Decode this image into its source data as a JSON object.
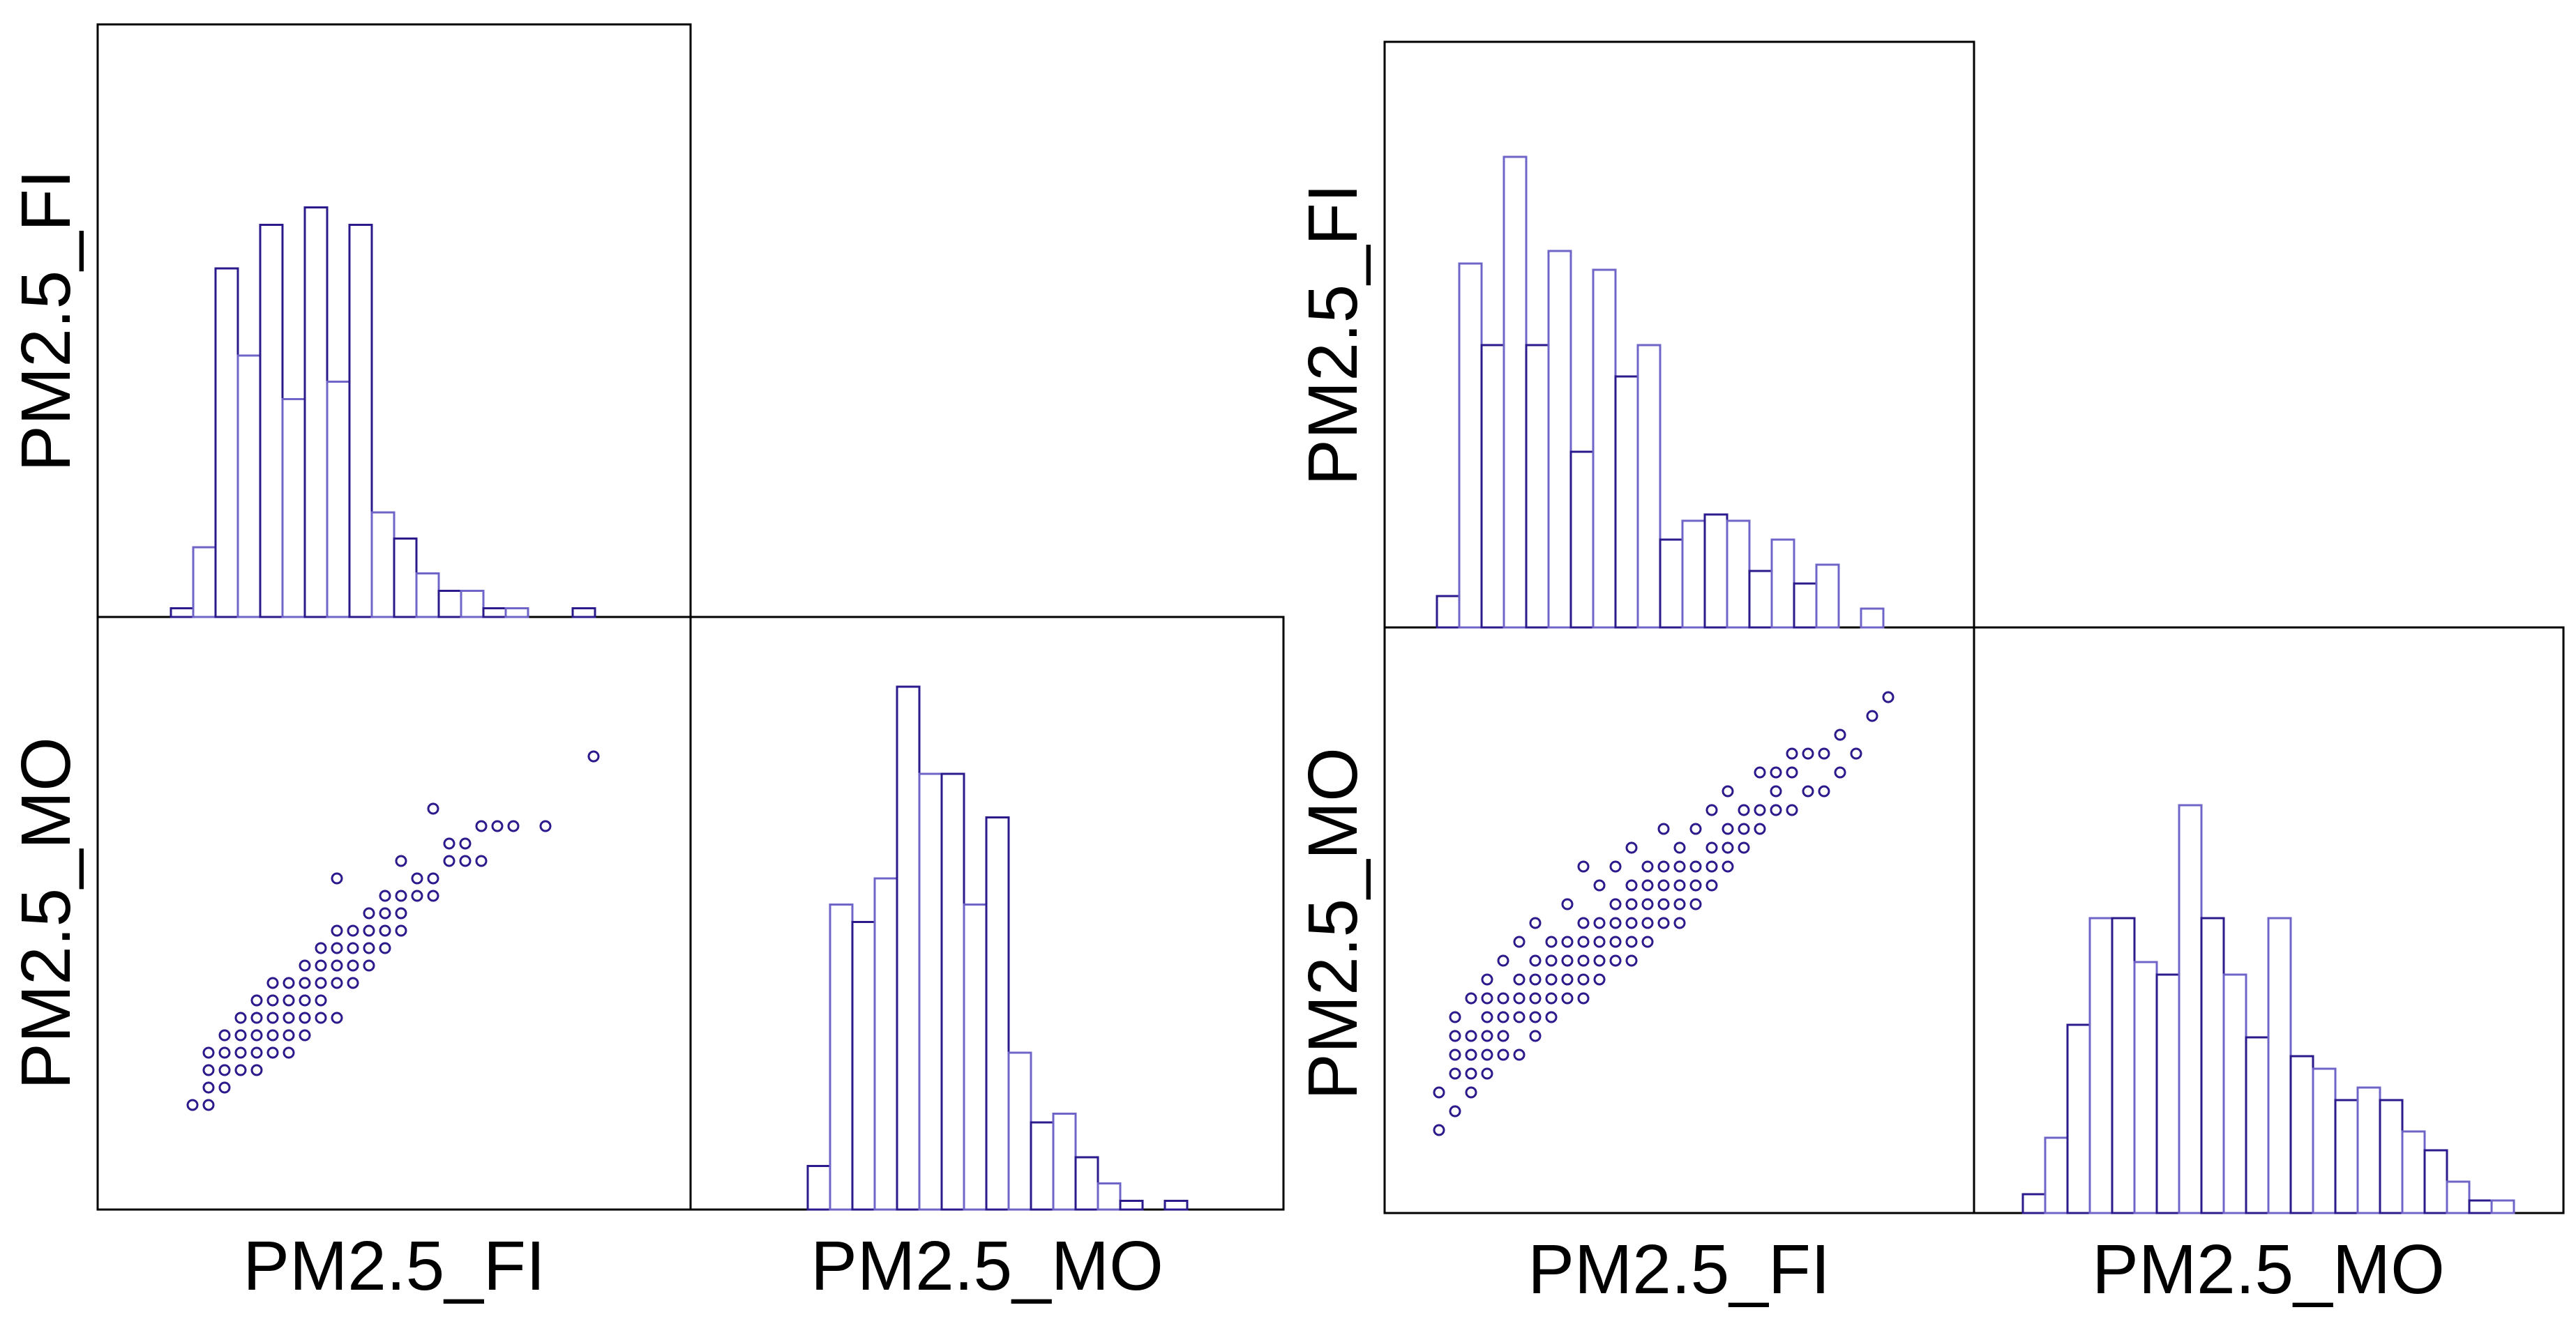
{
  "colors": {
    "primary": "#2a1a8c",
    "secondary": "#6f64c8",
    "frame": "#000000"
  },
  "chart_data": [
    {
      "type": "scatter-matrix",
      "variables": [
        "PM2.5_FI",
        "PM2.5_MO"
      ],
      "diagonal_histograms": {
        "PM2.5_FI": {
          "bin_counts": [
            1,
            8,
            40,
            30,
            45,
            25,
            47,
            27,
            45,
            12,
            9,
            5,
            3,
            3,
            1,
            1,
            0,
            0,
            1
          ]
        },
        "PM2.5_MO": {
          "bin_counts": [
            0,
            0,
            0,
            0,
            5,
            35,
            33,
            38,
            60,
            50,
            50,
            35,
            45,
            18,
            10,
            11,
            6,
            3,
            1,
            0,
            1,
            0
          ]
        }
      },
      "scatter": {
        "x_variable": "PM2.5_FI",
        "y_variable": "PM2.5_MO",
        "points": [
          [
            2,
            2
          ],
          [
            3,
            2
          ],
          [
            3,
            3
          ],
          [
            3,
            4
          ],
          [
            3,
            5
          ],
          [
            4,
            3
          ],
          [
            4,
            4
          ],
          [
            4,
            5
          ],
          [
            4,
            6
          ],
          [
            5,
            4
          ],
          [
            5,
            5
          ],
          [
            5,
            6
          ],
          [
            5,
            7
          ],
          [
            6,
            4
          ],
          [
            6,
            5
          ],
          [
            6,
            6
          ],
          [
            6,
            7
          ],
          [
            6,
            8
          ],
          [
            7,
            5
          ],
          [
            7,
            6
          ],
          [
            7,
            7
          ],
          [
            7,
            8
          ],
          [
            7,
            9
          ],
          [
            8,
            5
          ],
          [
            8,
            6
          ],
          [
            8,
            7
          ],
          [
            8,
            8
          ],
          [
            8,
            9
          ],
          [
            9,
            6
          ],
          [
            9,
            7
          ],
          [
            9,
            8
          ],
          [
            9,
            9
          ],
          [
            9,
            10
          ],
          [
            10,
            7
          ],
          [
            10,
            8
          ],
          [
            10,
            9
          ],
          [
            10,
            10
          ],
          [
            10,
            11
          ],
          [
            11,
            7
          ],
          [
            11,
            9
          ],
          [
            11,
            10
          ],
          [
            11,
            11
          ],
          [
            11,
            12
          ],
          [
            11,
            15
          ],
          [
            12,
            9
          ],
          [
            12,
            10
          ],
          [
            12,
            11
          ],
          [
            12,
            12
          ],
          [
            13,
            10
          ],
          [
            13,
            11
          ],
          [
            13,
            12
          ],
          [
            13,
            13
          ],
          [
            14,
            11
          ],
          [
            14,
            12
          ],
          [
            14,
            13
          ],
          [
            14,
            14
          ],
          [
            15,
            12
          ],
          [
            15,
            13
          ],
          [
            15,
            14
          ],
          [
            15,
            16
          ],
          [
            16,
            14
          ],
          [
            16,
            15
          ],
          [
            17,
            14
          ],
          [
            17,
            15
          ],
          [
            17,
            19
          ],
          [
            18,
            16
          ],
          [
            18,
            17
          ],
          [
            19,
            16
          ],
          [
            19,
            17
          ],
          [
            20,
            16
          ],
          [
            20,
            18
          ],
          [
            21,
            18
          ],
          [
            22,
            18
          ],
          [
            24,
            18
          ],
          [
            27,
            22
          ]
        ]
      }
    },
    {
      "type": "scatter-matrix",
      "variables": [
        "PM2.5_FI",
        "PM2.5_MO"
      ],
      "diagonal_histograms": {
        "PM2.5_FI": {
          "bin_counts": [
            5,
            58,
            45,
            75,
            45,
            60,
            28,
            57,
            40,
            45,
            14,
            17,
            18,
            17,
            9,
            14,
            7,
            10,
            0,
            3
          ]
        },
        "PM2.5_MO": {
          "bin_counts": [
            3,
            12,
            30,
            47,
            47,
            40,
            38,
            65,
            47,
            38,
            28,
            47,
            25,
            23,
            18,
            20,
            18,
            13,
            10,
            5,
            2,
            2
          ]
        }
      },
      "scatter": {
        "x_variable": "PM2.5_FI",
        "y_variable": "PM2.5_MO",
        "points": [
          [
            1,
            2
          ],
          [
            1,
            4
          ],
          [
            2,
            3
          ],
          [
            2,
            5
          ],
          [
            2,
            6
          ],
          [
            2,
            7
          ],
          [
            2,
            8
          ],
          [
            3,
            4
          ],
          [
            3,
            5
          ],
          [
            3,
            6
          ],
          [
            3,
            7
          ],
          [
            3,
            9
          ],
          [
            4,
            5
          ],
          [
            4,
            6
          ],
          [
            4,
            7
          ],
          [
            4,
            8
          ],
          [
            4,
            9
          ],
          [
            4,
            10
          ],
          [
            5,
            6
          ],
          [
            5,
            7
          ],
          [
            5,
            8
          ],
          [
            5,
            9
          ],
          [
            5,
            11
          ],
          [
            6,
            6
          ],
          [
            6,
            8
          ],
          [
            6,
            9
          ],
          [
            6,
            10
          ],
          [
            6,
            12
          ],
          [
            7,
            7
          ],
          [
            7,
            8
          ],
          [
            7,
            9
          ],
          [
            7,
            10
          ],
          [
            7,
            11
          ],
          [
            7,
            13
          ],
          [
            8,
            8
          ],
          [
            8,
            9
          ],
          [
            8,
            10
          ],
          [
            8,
            11
          ],
          [
            8,
            12
          ],
          [
            9,
            9
          ],
          [
            9,
            10
          ],
          [
            9,
            11
          ],
          [
            9,
            12
          ],
          [
            9,
            14
          ],
          [
            10,
            9
          ],
          [
            10,
            10
          ],
          [
            10,
            11
          ],
          [
            10,
            12
          ],
          [
            10,
            13
          ],
          [
            10,
            16
          ],
          [
            11,
            10
          ],
          [
            11,
            11
          ],
          [
            11,
            12
          ],
          [
            11,
            13
          ],
          [
            11,
            15
          ],
          [
            12,
            11
          ],
          [
            12,
            12
          ],
          [
            12,
            13
          ],
          [
            12,
            14
          ],
          [
            12,
            16
          ],
          [
            13,
            11
          ],
          [
            13,
            12
          ],
          [
            13,
            13
          ],
          [
            13,
            14
          ],
          [
            13,
            15
          ],
          [
            13,
            17
          ],
          [
            14,
            12
          ],
          [
            14,
            13
          ],
          [
            14,
            14
          ],
          [
            14,
            15
          ],
          [
            14,
            16
          ],
          [
            15,
            13
          ],
          [
            15,
            14
          ],
          [
            15,
            15
          ],
          [
            15,
            16
          ],
          [
            15,
            18
          ],
          [
            16,
            13
          ],
          [
            16,
            14
          ],
          [
            16,
            15
          ],
          [
            16,
            16
          ],
          [
            16,
            17
          ],
          [
            17,
            14
          ],
          [
            17,
            15
          ],
          [
            17,
            16
          ],
          [
            17,
            18
          ],
          [
            18,
            15
          ],
          [
            18,
            16
          ],
          [
            18,
            17
          ],
          [
            18,
            19
          ],
          [
            19,
            16
          ],
          [
            19,
            17
          ],
          [
            19,
            18
          ],
          [
            19,
            20
          ],
          [
            20,
            17
          ],
          [
            20,
            18
          ],
          [
            20,
            19
          ],
          [
            21,
            18
          ],
          [
            21,
            19
          ],
          [
            21,
            21
          ],
          [
            22,
            19
          ],
          [
            22,
            20
          ],
          [
            22,
            21
          ],
          [
            23,
            19
          ],
          [
            23,
            21
          ],
          [
            23,
            22
          ],
          [
            24,
            20
          ],
          [
            24,
            22
          ],
          [
            25,
            20
          ],
          [
            25,
            22
          ],
          [
            26,
            21
          ],
          [
            26,
            23
          ],
          [
            27,
            22
          ],
          [
            28,
            24
          ],
          [
            29,
            25
          ]
        ]
      }
    }
  ]
}
